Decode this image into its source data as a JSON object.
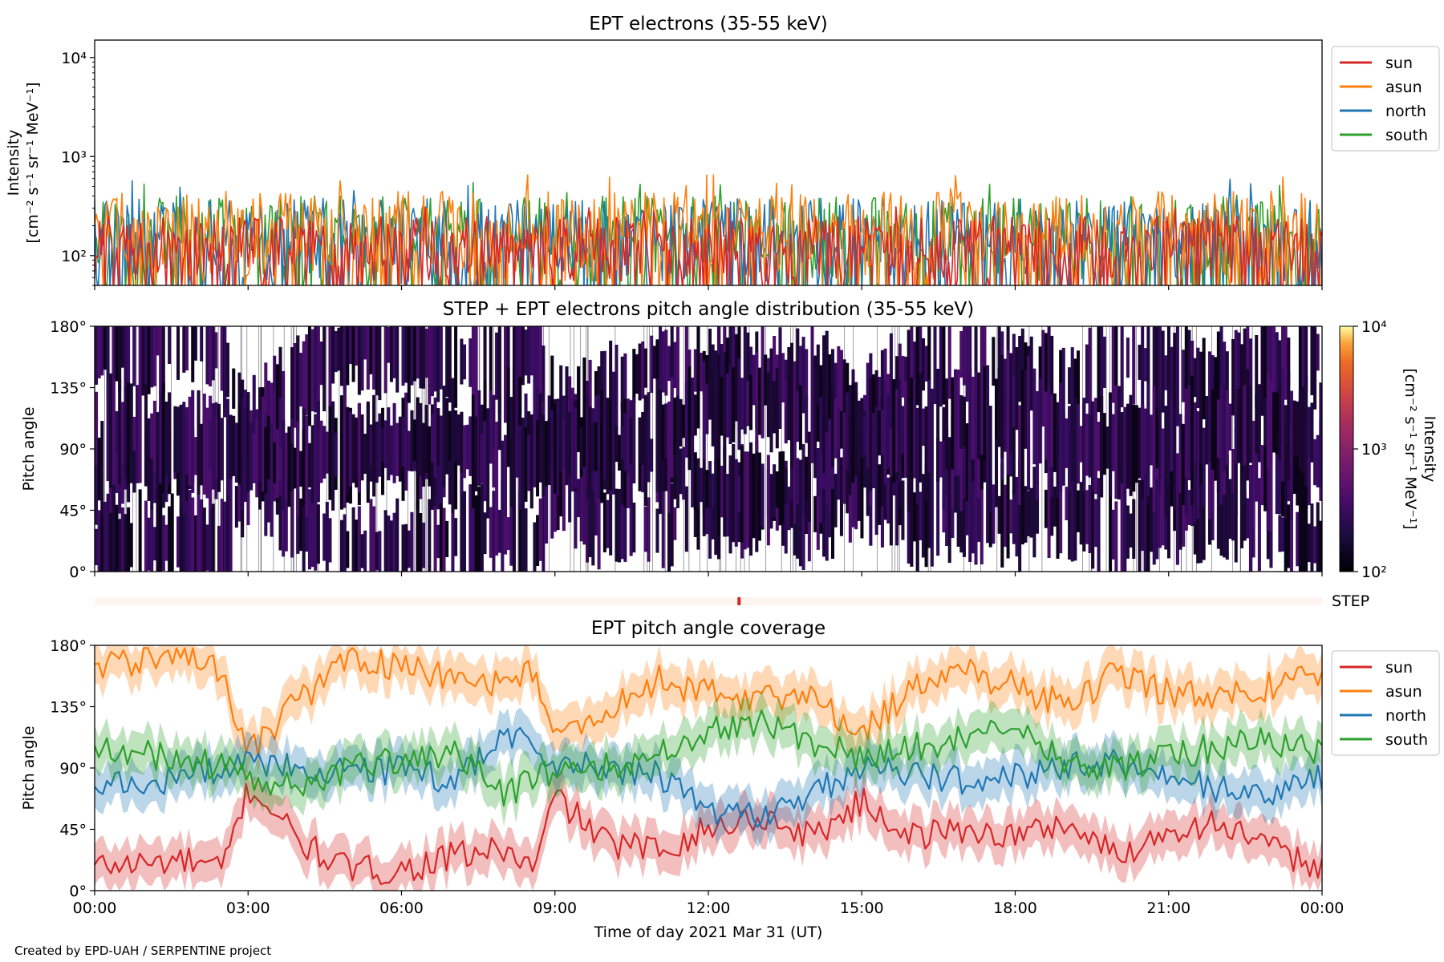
{
  "chart_data": [
    {
      "type": "line",
      "title": "EPT electrons (35-55 keV)",
      "ylabel_lines": [
        "Intensity",
        "[cm⁻² s⁻¹ sr⁻¹ MeV⁻¹]"
      ],
      "yscale": "log",
      "ylim": [
        50,
        15000
      ],
      "xlim_hours": [
        0,
        24
      ],
      "yticks": [
        {
          "value": 100,
          "label": "10²"
        },
        {
          "value": 1000,
          "label": "10³"
        },
        {
          "value": 10000,
          "label": "10⁴"
        }
      ],
      "legend": {
        "placement": "outside-right-top",
        "entries": [
          "sun",
          "asun",
          "north",
          "south"
        ]
      },
      "series": [
        {
          "name": "south",
          "color": "#2ca02c",
          "typical_range": [
            50,
            400
          ],
          "peak": 720
        },
        {
          "name": "north",
          "color": "#1f77b4",
          "typical_range": [
            50,
            380
          ],
          "peak": 600
        },
        {
          "name": "asun",
          "color": "#ff7f0e",
          "typical_range": [
            50,
            450
          ],
          "peak": 680
        },
        {
          "name": "sun",
          "color": "#d62728",
          "typical_range": [
            50,
            250
          ],
          "peak": 320
        }
      ]
    },
    {
      "type": "heatmap",
      "title": "STEP + EPT electrons pitch angle distribution (35-55 keV)",
      "ylabel": "Pitch angle",
      "ylim": [
        0,
        180
      ],
      "yticks": [
        "0°",
        "45°",
        "90°",
        "135°",
        "180°"
      ],
      "colorbar": {
        "label_lines": [
          "Intensity",
          "[cm⁻² s⁻¹ sr⁻¹ MeV⁻¹]"
        ],
        "scale": "log",
        "range": [
          100,
          10000
        ],
        "ticks": [
          "10²",
          "10³",
          "10⁴"
        ],
        "colormap": "inferno"
      },
      "step_bar": {
        "label": "STEP",
        "marker_hour": 12.6
      }
    },
    {
      "type": "line",
      "title": "EPT pitch angle coverage",
      "ylabel": "Pitch angle",
      "xlabel": "Time of day 2021 Mar 31 (UT)",
      "ylim": [
        0,
        180
      ],
      "yticks": [
        "0°",
        "45°",
        "90°",
        "135°",
        "180°"
      ],
      "xticks": [
        "00:00",
        "03:00",
        "06:00",
        "09:00",
        "12:00",
        "15:00",
        "18:00",
        "21:00",
        "00:00"
      ],
      "legend": {
        "placement": "outside-right-top",
        "entries": [
          "sun",
          "asun",
          "north",
          "south"
        ]
      },
      "series": [
        {
          "name": "sun",
          "color": "#d62728",
          "hours": [
            0,
            1,
            1.7,
            2.5,
            3,
            3.5,
            4,
            5,
            6,
            7,
            8,
            8.6,
            9,
            10,
            11,
            12,
            13,
            14,
            15,
            16,
            17,
            18,
            19,
            20,
            21,
            22,
            23,
            24
          ],
          "values": [
            18,
            20,
            22,
            15,
            75,
            60,
            35,
            15,
            15,
            25,
            30,
            15,
            70,
            35,
            30,
            45,
            55,
            40,
            65,
            40,
            45,
            40,
            50,
            25,
            45,
            50,
            30,
            18
          ]
        },
        {
          "name": "asun",
          "color": "#ff7f0e",
          "hours": [
            0,
            1,
            1.7,
            2.5,
            3,
            3.5,
            4,
            5,
            6,
            7,
            8,
            8.6,
            9,
            10,
            11,
            12,
            13,
            14,
            15,
            16,
            17,
            18,
            19,
            20,
            21,
            22,
            23,
            24
          ],
          "values": [
            165,
            170,
            175,
            160,
            100,
            120,
            140,
            170,
            165,
            155,
            150,
            165,
            110,
            130,
            155,
            145,
            140,
            145,
            115,
            150,
            160,
            150,
            135,
            160,
            145,
            140,
            150,
            162
          ]
        },
        {
          "name": "north",
          "color": "#1f77b4",
          "hours": [
            0,
            1,
            2,
            3,
            4,
            5,
            6,
            7,
            8,
            9,
            10,
            11,
            12,
            13,
            14,
            15,
            16,
            17,
            18,
            19,
            20,
            21,
            22,
            23,
            24
          ],
          "values": [
            75,
            78,
            85,
            95,
            90,
            85,
            90,
            80,
            115,
            95,
            88,
            85,
            60,
            55,
            70,
            90,
            85,
            80,
            85,
            90,
            95,
            80,
            75,
            70,
            82
          ]
        },
        {
          "name": "south",
          "color": "#2ca02c",
          "hours": [
            0,
            1,
            2,
            3,
            4,
            5,
            6,
            7,
            8,
            9,
            10,
            11,
            12,
            13,
            14,
            15,
            16,
            17,
            18,
            19,
            20,
            21,
            22,
            23,
            24
          ],
          "values": [
            105,
            100,
            95,
            85,
            75,
            90,
            95,
            100,
            70,
            90,
            92,
            100,
            120,
            125,
            110,
            100,
            105,
            110,
            125,
            95,
            90,
            100,
            105,
            110,
            100
          ]
        }
      ]
    }
  ],
  "footer": {
    "credit": "Created by EPD-UAH / SERPENTINE project"
  }
}
